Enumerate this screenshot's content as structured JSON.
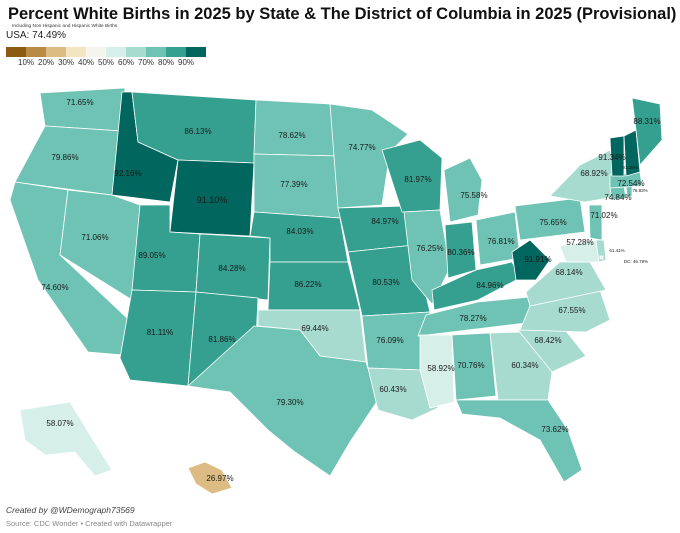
{
  "title": "Percent White Births in 2025 by State & The District of Columbia in 2025 (Provisional)",
  "subtitle": "Including Non Hispanic and Hispanic White Births",
  "usa_total": "USA: 74.49%",
  "legend": {
    "colors": [
      "#8c5a12",
      "#b98a45",
      "#dcbc82",
      "#f3e5c2",
      "#f5f5ee",
      "#d6efe8",
      "#a8dbd0",
      "#6ec3b4",
      "#35a090",
      "#01665e"
    ],
    "ticks": [
      "10%",
      "20%",
      "30%",
      "40%",
      "50%",
      "60%",
      "70%",
      "80%",
      "90%"
    ]
  },
  "chart_data": {
    "type": "choropleth",
    "metric": "Percent White Births 2025 (Provisional)",
    "regions": [
      {
        "id": "WA",
        "name": "Washington",
        "value": 71.65,
        "label": "71.65%"
      },
      {
        "id": "OR",
        "name": "Oregon",
        "value": 79.86,
        "label": "79.86%"
      },
      {
        "id": "CA",
        "name": "California",
        "value": 74.6,
        "label": "74.60%"
      },
      {
        "id": "NV",
        "name": "Nevada",
        "value": 71.06,
        "label": "71.06%"
      },
      {
        "id": "ID",
        "name": "Idaho",
        "value": 92.16,
        "label": "92.16%"
      },
      {
        "id": "MT",
        "name": "Montana",
        "value": 86.13,
        "label": "86.13%"
      },
      {
        "id": "WY",
        "name": "Wyoming",
        "value": 91.1,
        "label": "91.10%"
      },
      {
        "id": "UT",
        "name": "Utah",
        "value": 89.05,
        "label": "89.05%"
      },
      {
        "id": "CO",
        "name": "Colorado",
        "value": 84.28,
        "label": "84.28%"
      },
      {
        "id": "AZ",
        "name": "Arizona",
        "value": 81.11,
        "label": "81.11%"
      },
      {
        "id": "NM",
        "name": "New Mexico",
        "value": 81.86,
        "label": "81.86%"
      },
      {
        "id": "ND",
        "name": "North Dakota",
        "value": 78.62,
        "label": "78.62%"
      },
      {
        "id": "SD",
        "name": "South Dakota",
        "value": 77.39,
        "label": "77.39%"
      },
      {
        "id": "NE",
        "name": "Nebraska",
        "value": 84.03,
        "label": "84.03%"
      },
      {
        "id": "KS",
        "name": "Kansas",
        "value": 86.22,
        "label": "86.22%"
      },
      {
        "id": "OK",
        "name": "Oklahoma",
        "value": 69.44,
        "label": "69.44%"
      },
      {
        "id": "TX",
        "name": "Texas",
        "value": 79.3,
        "label": "79.30%"
      },
      {
        "id": "MN",
        "name": "Minnesota",
        "value": 74.77,
        "label": "74.77%"
      },
      {
        "id": "IA",
        "name": "Iowa",
        "value": 84.97,
        "label": "84.97%"
      },
      {
        "id": "MO",
        "name": "Missouri",
        "value": 80.53,
        "label": "80.53%"
      },
      {
        "id": "AR",
        "name": "Arkansas",
        "value": 76.09,
        "label": "76.09%"
      },
      {
        "id": "LA",
        "name": "Louisiana",
        "value": 60.43,
        "label": "60.43%"
      },
      {
        "id": "WI",
        "name": "Wisconsin",
        "value": 81.97,
        "label": "81.97%"
      },
      {
        "id": "IL",
        "name": "Illinois",
        "value": 76.25,
        "label": "76.25%"
      },
      {
        "id": "MI",
        "name": "Michigan",
        "value": 75.58,
        "label": "75.58%"
      },
      {
        "id": "IN",
        "name": "Indiana",
        "value": 80.36,
        "label": "80.36%"
      },
      {
        "id": "OH",
        "name": "Ohio",
        "value": 76.81,
        "label": "76.81%"
      },
      {
        "id": "KY",
        "name": "Kentucky",
        "value": 84.96,
        "label": "84.96%"
      },
      {
        "id": "TN",
        "name": "Tennessee",
        "value": 78.27,
        "label": "78.27%"
      },
      {
        "id": "MS",
        "name": "Mississippi",
        "value": 58.92,
        "label": "58.92%"
      },
      {
        "id": "AL",
        "name": "Alabama",
        "value": 70.76,
        "label": "70.76%"
      },
      {
        "id": "GA",
        "name": "Georgia",
        "value": 60.34,
        "label": "60.34%"
      },
      {
        "id": "FL",
        "name": "Florida",
        "value": 73.62,
        "label": "73.62%"
      },
      {
        "id": "SC",
        "name": "South Carolina",
        "value": 68.42,
        "label": "68.42%"
      },
      {
        "id": "NC",
        "name": "North Carolina",
        "value": 67.55,
        "label": "67.55%"
      },
      {
        "id": "VA",
        "name": "Virginia",
        "value": 68.14,
        "label": "68.14%"
      },
      {
        "id": "WV",
        "name": "West Virginia",
        "value": 91.91,
        "label": "91.91%"
      },
      {
        "id": "PA",
        "name": "Pennsylvania",
        "value": 75.65,
        "label": "75.65%"
      },
      {
        "id": "NY",
        "name": "New York",
        "value": 68.92,
        "label": "68.92%"
      },
      {
        "id": "MD",
        "name": "Maryland",
        "value": 57.28,
        "label": "57.28%"
      },
      {
        "id": "DE",
        "name": "Delaware",
        "value": 61.41,
        "label": "61.41%"
      },
      {
        "id": "NJ",
        "name": "New Jersey",
        "value": 71.02,
        "label": "71.02%"
      },
      {
        "id": "CT",
        "name": "Connecticut",
        "value": 74.84,
        "label": "74.84%"
      },
      {
        "id": "RI",
        "name": "Rhode Island",
        "value": 76.83,
        "label": "76.83%"
      },
      {
        "id": "MA",
        "name": "Massachusetts",
        "value": 72.54,
        "label": "72.54%"
      },
      {
        "id": "VT",
        "name": "Vermont",
        "value": 91.34,
        "label": "91.34%"
      },
      {
        "id": "NH",
        "name": "New Hampshire",
        "value": 91.35,
        "label": "91.35%"
      },
      {
        "id": "ME",
        "name": "Maine",
        "value": 88.31,
        "label": "88.31%"
      },
      {
        "id": "AK",
        "name": "Alaska",
        "value": 58.07,
        "label": "58.07%"
      },
      {
        "id": "HI",
        "name": "Hawaii",
        "value": 26.97,
        "label": "26.97%"
      },
      {
        "id": "DC",
        "name": "District of Columbia",
        "value": 46.79,
        "label": "DC: 46.79%"
      }
    ]
  },
  "credit": "Created by @WDemograph73569",
  "source": "Source: CDC Wonder • Created with Datawrapper"
}
